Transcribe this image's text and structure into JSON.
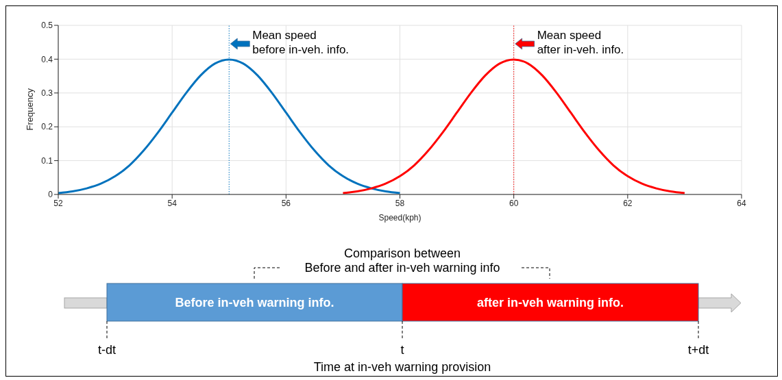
{
  "chart_data": {
    "type": "line",
    "xlabel": "Speed(kph)",
    "ylabel": "Frequency",
    "series": [
      {
        "color": "#0072bd",
        "x": [
          52,
          52.25,
          52.5,
          52.75,
          53,
          53.25,
          53.5,
          53.75,
          54,
          54.25,
          54.5,
          54.75,
          55,
          55.25,
          55.5,
          55.75,
          56,
          56.25,
          56.5,
          56.75,
          57,
          57.25,
          57.5,
          57.75,
          58
        ],
        "values": [
          0.004,
          0.009,
          0.018,
          0.032,
          0.054,
          0.086,
          0.13,
          0.183,
          0.242,
          0.301,
          0.352,
          0.387,
          0.399,
          0.387,
          0.352,
          0.301,
          0.242,
          0.183,
          0.13,
          0.086,
          0.054,
          0.032,
          0.018,
          0.009,
          0.004
        ]
      },
      {
        "color": "#ff0000",
        "x": [
          57,
          57.25,
          57.5,
          57.75,
          58,
          58.25,
          58.5,
          58.75,
          59,
          59.25,
          59.5,
          59.75,
          60,
          60.25,
          60.5,
          60.75,
          61,
          61.25,
          61.5,
          61.75,
          62,
          62.25,
          62.5,
          62.75,
          63
        ],
        "values": [
          0.004,
          0.009,
          0.018,
          0.032,
          0.054,
          0.086,
          0.13,
          0.183,
          0.242,
          0.301,
          0.352,
          0.387,
          0.399,
          0.387,
          0.352,
          0.301,
          0.242,
          0.183,
          0.13,
          0.086,
          0.054,
          0.032,
          0.018,
          0.009,
          0.004
        ]
      }
    ],
    "xlim": [
      52,
      64
    ],
    "xticks": [
      52,
      54,
      56,
      58,
      60,
      62,
      64
    ],
    "ylim": [
      0,
      0.5
    ],
    "yticks": [
      0,
      0.1,
      0.2,
      0.3,
      0.4,
      0.5
    ],
    "grid": true,
    "line_style": "solid",
    "marker": "none",
    "ref_lines": [
      {
        "axis": "x",
        "value": 55,
        "label": "Mean speed\nbefore in-veh. info.",
        "color": "#0072bd",
        "line_style": "dotted"
      },
      {
        "axis": "x",
        "value": 60,
        "label": "Mean speed\nafter in-veh. info.",
        "color": "#ff0000",
        "line_style": "dotted"
      }
    ],
    "annotations": [
      "Comparison between\nBefore and after in-veh warning info",
      "Before in-veh warning info.",
      "after in-veh warning info.",
      "t-dt",
      "t",
      "t+dt",
      "Time at in-veh warning provision"
    ]
  }
}
